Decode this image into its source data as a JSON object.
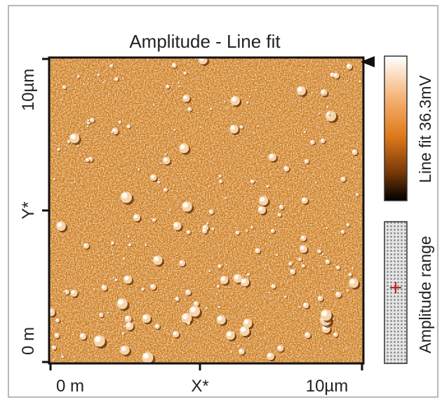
{
  "title": "Amplitude - Line fit",
  "y_axis": {
    "labels": [
      "10µm",
      "Y*",
      "0 m"
    ]
  },
  "x_axis": {
    "labels": [
      "0 m",
      "X*",
      "10µm"
    ]
  },
  "colorbar": {
    "label": "Line fit 36.3mV"
  },
  "range_bar": {
    "label": "Amplitude range"
  }
}
